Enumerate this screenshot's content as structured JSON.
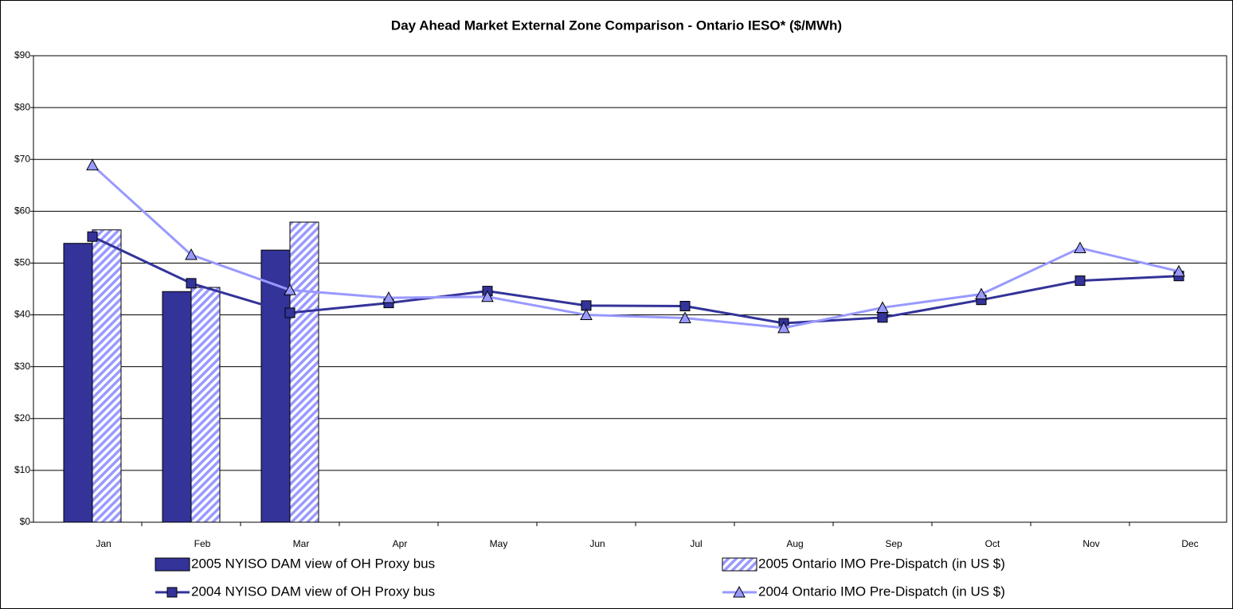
{
  "chart_data": {
    "type": "bar",
    "title": "Day Ahead Market External Zone Comparison - Ontario IESO* ($/MWh)",
    "categories": [
      "Jan",
      "Feb",
      "Mar",
      "Apr",
      "May",
      "Jun",
      "Jul",
      "Aug",
      "Sep",
      "Oct",
      "Nov",
      "Dec"
    ],
    "series": [
      {
        "name": "2005 NYISO DAM view of OH Proxy bus",
        "type": "bar",
        "color": "#333399",
        "values": [
          53.8,
          44.5,
          52.5,
          null,
          null,
          null,
          null,
          null,
          null,
          null,
          null,
          null
        ]
      },
      {
        "name": "2005 Ontario IMO Pre-Dispatch (in US $)",
        "type": "bar",
        "color": "#9999ff",
        "hatch": true,
        "values": [
          56.4,
          45.3,
          57.9,
          null,
          null,
          null,
          null,
          null,
          null,
          null,
          null,
          null
        ]
      },
      {
        "name": "2004 NYISO DAM view of OH Proxy bus",
        "type": "line",
        "color": "#333399",
        "marker": "square",
        "values": [
          55.1,
          46.1,
          40.4,
          42.3,
          44.6,
          41.8,
          41.7,
          38.4,
          39.5,
          42.9,
          46.6,
          47.5
        ]
      },
      {
        "name": "2004 Ontario IMO Pre-Dispatch (in US $)",
        "type": "line",
        "color": "#9999ff",
        "marker": "triangle",
        "values": [
          68.9,
          51.6,
          44.8,
          43.3,
          43.5,
          40.0,
          39.4,
          37.5,
          41.4,
          44.0,
          52.9,
          48.4
        ]
      }
    ],
    "ylim": [
      0,
      90
    ],
    "yticks": [
      {
        "value": 0,
        "label": "$0"
      },
      {
        "value": 10,
        "label": "$10"
      },
      {
        "value": 20,
        "label": "$20"
      },
      {
        "value": 30,
        "label": "$30"
      },
      {
        "value": 40,
        "label": "$40"
      },
      {
        "value": 50,
        "label": "$50"
      },
      {
        "value": 60,
        "label": "$60"
      },
      {
        "value": 70,
        "label": "$70"
      },
      {
        "value": 80,
        "label": "$80"
      },
      {
        "value": 90,
        "label": "$90"
      }
    ],
    "grid": true
  }
}
